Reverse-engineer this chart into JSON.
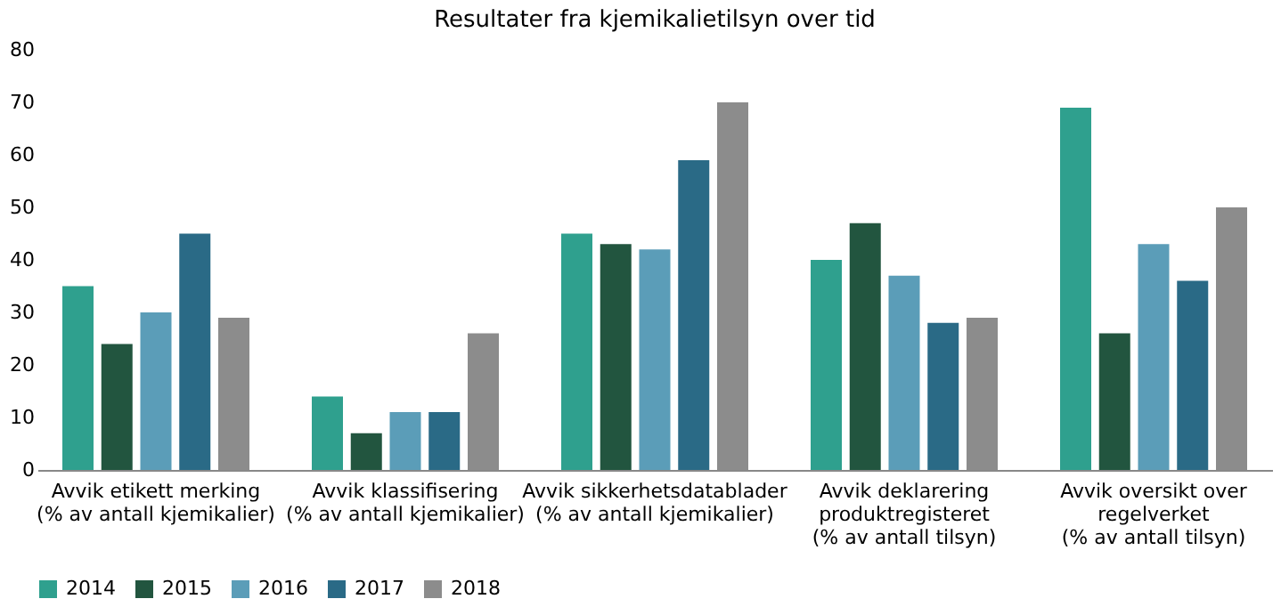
{
  "chart_data": {
    "type": "bar",
    "title": "Resultater fra kjemikalietilsyn over tid",
    "categories": [
      "Avvik etikett merking\n(% av antall kjemikalier)",
      "Avvik klassifisering\n(% av antall kjemikalier)",
      "Avvik sikkerhetsdatablader\n(% av antall kjemikalier)",
      "Avvik deklarering\nproduktregisteret\n(% av antall tilsyn)",
      "Avvik oversikt over\nregelverket\n(% av antall tilsyn)"
    ],
    "series": [
      {
        "name": "2014",
        "color": "#2fa08e",
        "values": [
          35,
          14,
          45,
          40,
          69
        ]
      },
      {
        "name": "2015",
        "color": "#22553f",
        "values": [
          24,
          7,
          43,
          47,
          26
        ]
      },
      {
        "name": "2016",
        "color": "#5b9db8",
        "values": [
          30,
          11,
          42,
          37,
          43
        ]
      },
      {
        "name": "2017",
        "color": "#2a6a86",
        "values": [
          45,
          11,
          59,
          28,
          36
        ]
      },
      {
        "name": "2018",
        "color": "#8c8c8c",
        "values": [
          29,
          26,
          70,
          29,
          50
        ]
      }
    ],
    "ylim": [
      0,
      80
    ],
    "yticks": [
      0,
      10,
      20,
      30,
      40,
      50,
      60,
      70,
      80
    ],
    "grid": false,
    "legend": "bottom"
  }
}
